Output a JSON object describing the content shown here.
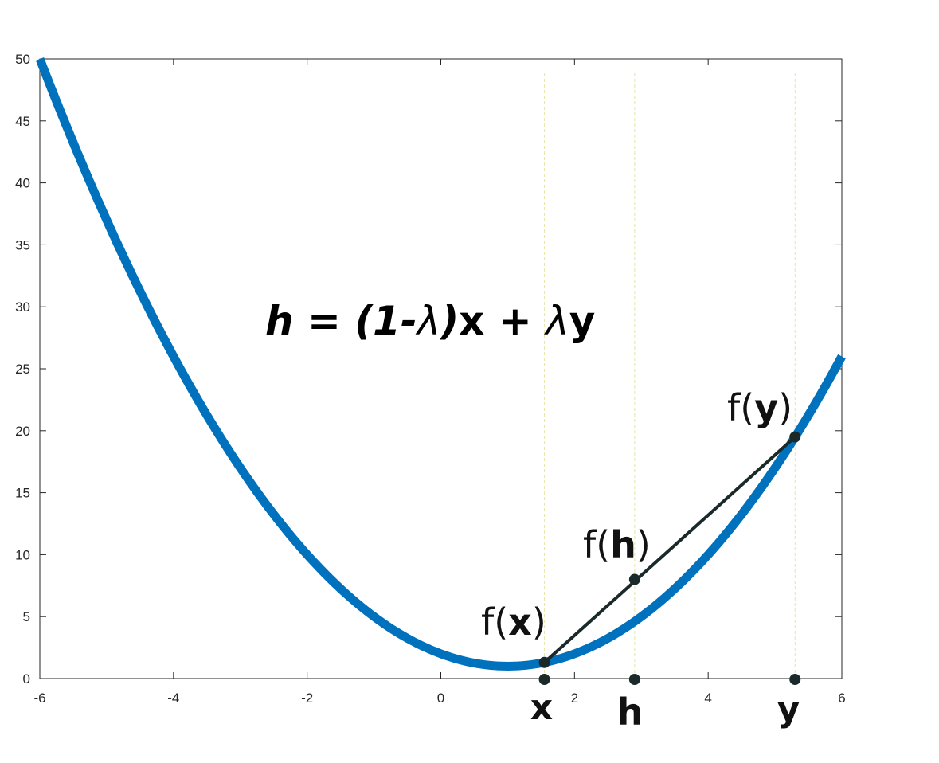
{
  "chart_data": {
    "type": "line",
    "title": "",
    "xlabel": "",
    "ylabel": "",
    "xlim": [
      -6,
      6
    ],
    "ylim": [
      0,
      50
    ],
    "grid": false,
    "x_ticks": [
      -6,
      -4,
      -2,
      0,
      2,
      4,
      6
    ],
    "y_ticks": [
      0,
      5,
      10,
      15,
      20,
      25,
      30,
      35,
      40,
      45,
      50
    ],
    "curve": {
      "function": "y = (x - 1)^2 + 1",
      "x_range": [
        -6,
        6
      ],
      "color": "#0072BD"
    },
    "points": [
      {
        "name": "x",
        "x": 1.55,
        "y": 1.3
      },
      {
        "name": "h",
        "x": 2.9,
        "y": 8.0
      },
      {
        "name": "y",
        "x": 5.3,
        "y": 19.5
      }
    ],
    "chord": {
      "from": "x",
      "to": "y",
      "color": "#1a2a2a"
    },
    "guide_color": "#e6e6a8",
    "axis_point_labels": [
      "x",
      "h",
      "y"
    ],
    "value_labels": {
      "fx": {
        "pre": "f(",
        "var": "x",
        "post": ")"
      },
      "fh": {
        "pre": "f(",
        "var": "h",
        "post": ")"
      },
      "fy": {
        "pre": "f(",
        "var": "y",
        "post": ")"
      }
    },
    "formula": {
      "h": "h",
      "eq": " = (1-",
      "lambda1": "λ",
      "mid": ")",
      "x": "x",
      "plus": " + ",
      "lambda2": "λ",
      "y": "y"
    }
  }
}
